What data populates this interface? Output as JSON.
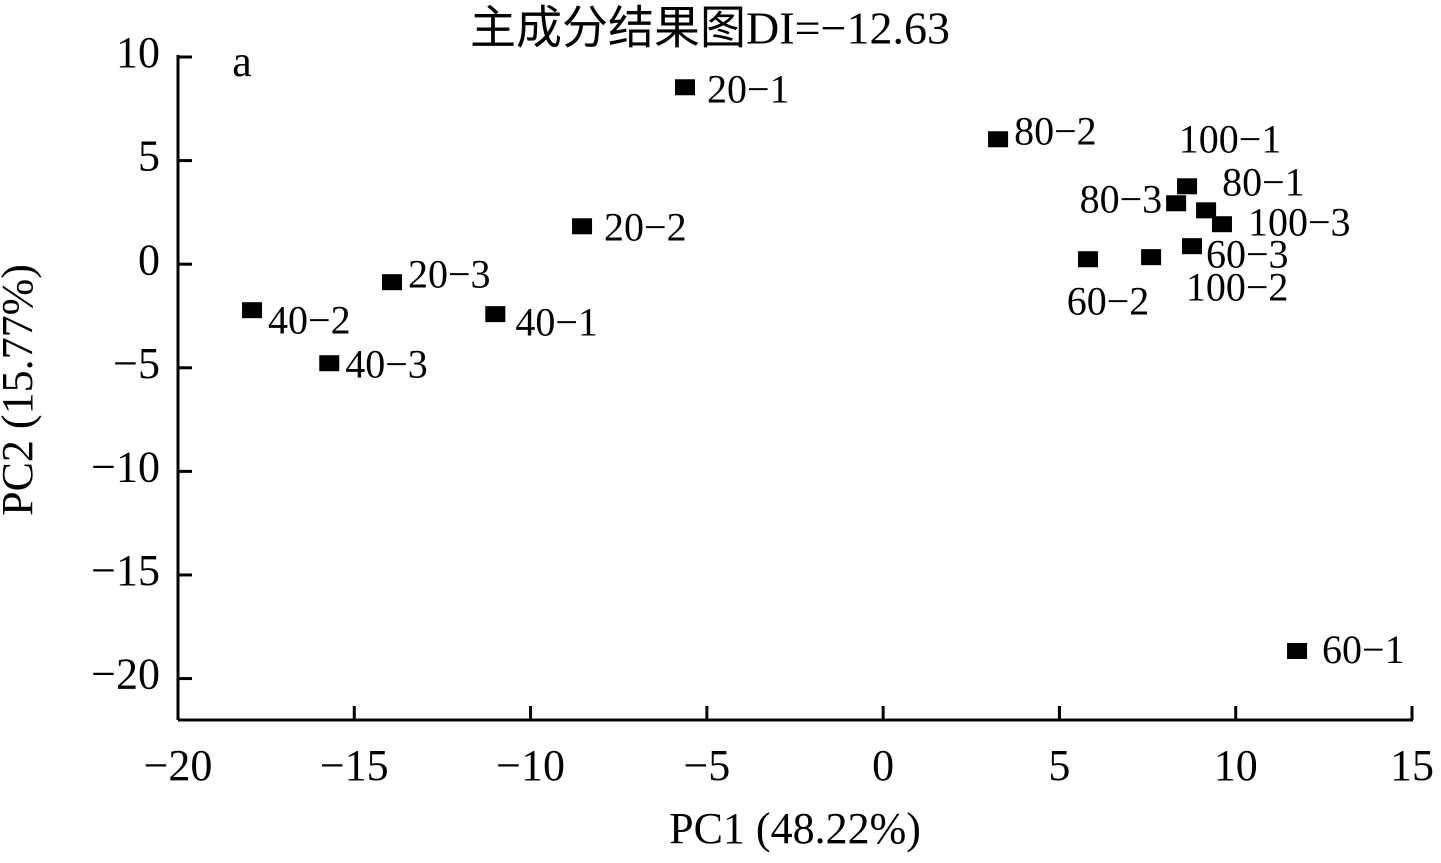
{
  "chart_data": {
    "type": "scatter",
    "title": "主成分结果图DI=−12.63",
    "panel_label": "a",
    "x_label": "PC1 (48.22%)",
    "y_label": "PC2 (15.77%)",
    "xlim": [
      -20,
      15
    ],
    "ylim": [
      -22,
      10
    ],
    "xticks": [
      {
        "value": -20,
        "label": "−20"
      },
      {
        "value": -15,
        "label": "−15"
      },
      {
        "value": -10,
        "label": "−10"
      },
      {
        "value": -5,
        "label": "−5"
      },
      0,
      5,
      10,
      15
    ],
    "yticks": [
      {
        "value": -20,
        "label": "−20"
      },
      {
        "value": -15,
        "label": "−15"
      },
      {
        "value": -10,
        "label": "−10"
      },
      {
        "value": -5,
        "label": "−5"
      },
      0,
      5,
      10
    ],
    "color": "#000000",
    "points": [
      "20−1",
      "80−2",
      "100−1",
      "80−3",
      "80−1",
      "100−3",
      "20−2",
      "60−3",
      "60−2",
      "100−2",
      "20−3",
      "40−2",
      "40−1",
      "40−3",
      "60−1"
    ],
    "x": [
      -5.62,
      3.26,
      8.62,
      8.31,
      9.16,
      9.61,
      -8.54,
      8.76,
      5.81,
      7.6,
      -13.93,
      -17.9,
      -11.0,
      -15.71,
      11.74
    ],
    "y": [
      8.54,
      6.03,
      3.76,
      2.94,
      2.6,
      1.93,
      1.83,
      0.87,
      0.24,
      0.34,
      -0.87,
      -2.22,
      -2.41,
      -4.78,
      -18.67
    ]
  }
}
